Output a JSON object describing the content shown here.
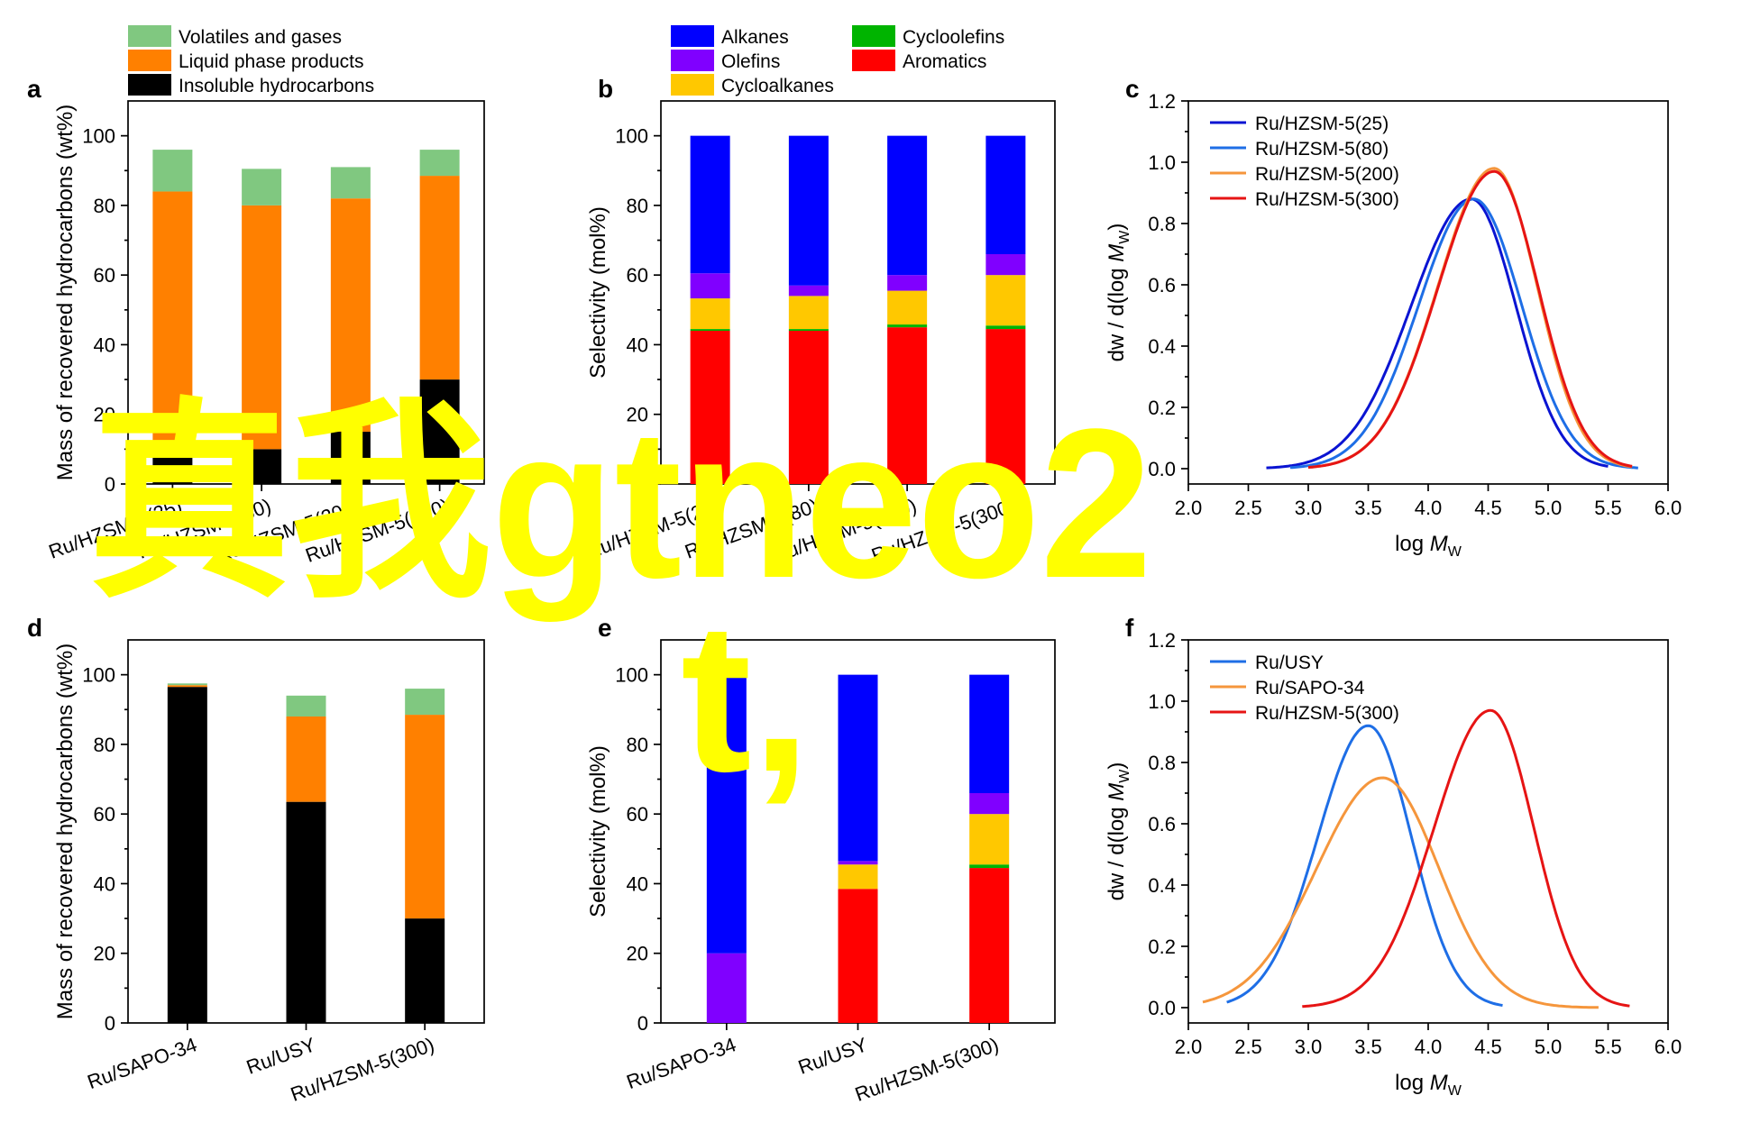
{
  "colors": {
    "volatiles": "#80c880",
    "liquid": "#ff8000",
    "insoluble": "#000000",
    "alkanes": "#0000ff",
    "olefins": "#8000ff",
    "cycloalkanes": "#ffc800",
    "cycloolefins": "#00b400",
    "aromatics": "#ff0000",
    "line_25": "#0a14d2",
    "line_80": "#1e6ee6",
    "line_200": "#f5963c",
    "line_300": "#e61414",
    "line_usy": "#1e6ee6",
    "line_sapo": "#f5963c",
    "overlay": "#ffff00"
  },
  "overlay_text": {
    "line1": "真我gtneo2",
    "line2": "t,"
  },
  "chart_data": [
    {
      "panel": "a",
      "type": "bar",
      "stacked": true,
      "ylabel": "Mass of recovered hydrocarbons (wt%)",
      "ylim": [
        0,
        110
      ],
      "yticks": [
        0,
        20,
        40,
        60,
        80,
        100
      ],
      "categories": [
        "Ru/HZSM-5(25)",
        "Ru/HZSM-5(80)",
        "Ru/HZSM-5(200)",
        "Ru/HZSM-5(300)"
      ],
      "series": [
        {
          "name": "Insoluble hydrocarbons",
          "color_key": "insoluble",
          "values": [
            8,
            10,
            15,
            30
          ]
        },
        {
          "name": "Liquid phase products",
          "color_key": "liquid",
          "values": [
            76,
            70,
            67,
            58.5
          ]
        },
        {
          "name": "Volatiles and gases",
          "color_key": "volatiles",
          "values": [
            12,
            10.5,
            9,
            7.5
          ]
        }
      ],
      "legend_order": [
        2,
        1,
        0
      ],
      "legend": "top"
    },
    {
      "panel": "b",
      "type": "bar",
      "stacked": true,
      "ylabel": "Selectivity (mol%)",
      "ylim": [
        0,
        110
      ],
      "yticks": [
        0,
        20,
        40,
        60,
        80,
        100
      ],
      "categories": [
        "Ru/HZSM-5(25)",
        "Ru/HZSM-5(80)",
        "Ru/HZSM-5(200)",
        "Ru/HZSM-5(300)"
      ],
      "series": [
        {
          "name": "Aromatics",
          "color_key": "aromatics",
          "values": [
            44,
            44,
            45,
            44.5
          ]
        },
        {
          "name": "Cycloolefins",
          "color_key": "cycloolefins",
          "values": [
            0.5,
            0.5,
            0.8,
            1
          ]
        },
        {
          "name": "Cycloalkanes",
          "color_key": "cycloalkanes",
          "values": [
            8.8,
            9.5,
            9.7,
            14.5
          ]
        },
        {
          "name": "Olefins",
          "color_key": "olefins",
          "values": [
            7.2,
            3,
            4.5,
            6
          ]
        },
        {
          "name": "Alkanes",
          "color_key": "alkanes",
          "values": [
            39.5,
            43,
            40,
            34
          ]
        }
      ],
      "legend_order": [
        4,
        1,
        3,
        0,
        2
      ],
      "legend": "top"
    },
    {
      "panel": "c",
      "type": "line",
      "xlabel_prefix": "log ",
      "xlabel_italic": "M",
      "xlabel_sub": "W",
      "ylabel_prefix": "dw / d(log ",
      "ylabel_italic": "M",
      "ylabel_sub": "W",
      "ylabel_suffix": ")",
      "xlim": [
        2.0,
        6.0
      ],
      "ylim": [
        -0.05,
        1.2
      ],
      "xticks": [
        2.0,
        2.5,
        3.0,
        3.5,
        4.0,
        4.5,
        5.0,
        5.5,
        6.0
      ],
      "yticks": [
        0.0,
        0.2,
        0.4,
        0.6,
        0.8,
        1.0,
        1.2
      ],
      "series": [
        {
          "name": "Ru/HZSM-5(25)",
          "color_key": "line_25",
          "peak": 4.36,
          "height": 0.88,
          "sl": 0.5,
          "sr": 0.37,
          "x0": 2.65,
          "x1": 5.5
        },
        {
          "name": "Ru/HZSM-5(80)",
          "color_key": "line_80",
          "peak": 4.38,
          "height": 0.88,
          "sl": 0.46,
          "sr": 0.4,
          "x0": 2.85,
          "x1": 5.75
        },
        {
          "name": "Ru/HZSM-5(200)",
          "color_key": "line_200",
          "peak": 4.55,
          "height": 0.98,
          "sl": 0.47,
          "sr": 0.36,
          "x0": 3.0,
          "x1": 5.7
        },
        {
          "name": "Ru/HZSM-5(300)",
          "color_key": "line_300",
          "peak": 4.55,
          "height": 0.97,
          "sl": 0.47,
          "sr": 0.37,
          "x0": 3.0,
          "x1": 5.7
        }
      ],
      "legend": "top-left"
    },
    {
      "panel": "d",
      "type": "bar",
      "stacked": true,
      "ylabel": "Mass of recovered hydrocarbons (wt%)",
      "ylim": [
        0,
        110
      ],
      "yticks": [
        0,
        20,
        40,
        60,
        80,
        100
      ],
      "categories": [
        "Ru/SAPO-34",
        "Ru/USY",
        "Ru/HZSM-5(300)"
      ],
      "series": [
        {
          "name": "Insoluble hydrocarbons",
          "color_key": "insoluble",
          "values": [
            96.5,
            63.5,
            30
          ]
        },
        {
          "name": "Liquid phase products",
          "color_key": "liquid",
          "values": [
            0.5,
            24.5,
            58.5
          ]
        },
        {
          "name": "Volatiles and gases",
          "color_key": "volatiles",
          "values": [
            0.5,
            6,
            7.5
          ]
        }
      ]
    },
    {
      "panel": "e",
      "type": "bar",
      "stacked": true,
      "ylabel": "Selectivity (mol%)",
      "ylim": [
        0,
        110
      ],
      "yticks": [
        0,
        20,
        40,
        60,
        80,
        100
      ],
      "categories": [
        "Ru/SAPO-34",
        "Ru/USY",
        "Ru/HZSM-5(300)"
      ],
      "series": [
        {
          "name": "Aromatics",
          "color_key": "aromatics",
          "values": [
            0,
            38.5,
            44.5
          ]
        },
        {
          "name": "Cycloolefins",
          "color_key": "cycloolefins",
          "values": [
            0,
            0,
            1
          ]
        },
        {
          "name": "Cycloalkanes",
          "color_key": "cycloalkanes",
          "values": [
            0,
            7,
            14.5
          ]
        },
        {
          "name": "Olefins",
          "color_key": "olefins",
          "values": [
            20,
            1,
            6
          ]
        },
        {
          "name": "Alkanes",
          "color_key": "alkanes",
          "values": [
            80,
            53.5,
            34
          ]
        }
      ]
    },
    {
      "panel": "f",
      "type": "line",
      "xlabel_prefix": "log ",
      "xlabel_italic": "M",
      "xlabel_sub": "W",
      "ylabel_prefix": "dw / d(log ",
      "ylabel_italic": "M",
      "ylabel_sub": "W",
      "ylabel_suffix": ")",
      "xlim": [
        2.0,
        6.0
      ],
      "ylim": [
        -0.05,
        1.2
      ],
      "xticks": [
        2.0,
        2.5,
        3.0,
        3.5,
        4.0,
        4.5,
        5.0,
        5.5,
        6.0
      ],
      "yticks": [
        0.0,
        0.2,
        0.4,
        0.6,
        0.8,
        1.0,
        1.2
      ],
      "series": [
        {
          "name": "Ru/USY",
          "color_key": "line_usy",
          "peak": 3.5,
          "height": 0.92,
          "sl": 0.42,
          "sr": 0.36,
          "x0": 2.32,
          "x1": 4.62
        },
        {
          "name": "Ru/SAPO-34",
          "color_key": "line_sapo",
          "peak": 3.62,
          "height": 0.75,
          "sl": 0.55,
          "sr": 0.47,
          "x0": 2.12,
          "x1": 5.42
        },
        {
          "name": "Ru/HZSM-5(300)",
          "color_key": "line_300",
          "peak": 4.52,
          "height": 0.97,
          "sl": 0.47,
          "sr": 0.36,
          "x0": 2.95,
          "x1": 5.68
        }
      ],
      "legend": "top-left"
    }
  ]
}
